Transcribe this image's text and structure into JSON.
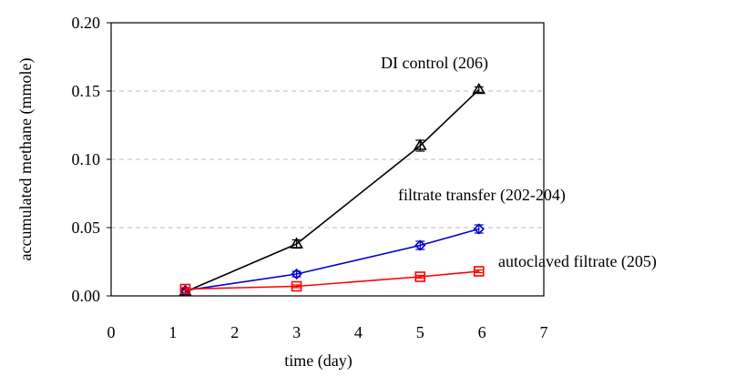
{
  "chart_data": {
    "type": "line",
    "xlabel": "time (day)",
    "ylabel": "accumulated methane (mmole)",
    "xlim": [
      0,
      7
    ],
    "ylim": [
      0,
      0.2
    ],
    "x_ticks": [
      "0",
      "1",
      "2",
      "3",
      "4",
      "5",
      "6",
      "7"
    ],
    "y_ticks": [
      "0.00",
      "0.05",
      "0.10",
      "0.15",
      "0.20"
    ],
    "grid": "horizontal dashed",
    "series": [
      {
        "name": "DI control (206)",
        "color": "#000000",
        "marker": "triangle",
        "x": [
          1.2,
          3,
          5,
          5.95
        ],
        "y": [
          0.003,
          0.038,
          0.11,
          0.151
        ],
        "error": [
          0.002,
          0.003,
          0.004,
          0.002
        ]
      },
      {
        "name": "filtrate transfer (202-204)",
        "color": "#0000cc",
        "marker": "diamond",
        "x": [
          1.2,
          3,
          5,
          5.95
        ],
        "y": [
          0.004,
          0.016,
          0.037,
          0.049
        ],
        "error": [
          0.002,
          0.002,
          0.003,
          0.003
        ]
      },
      {
        "name": "autoclaved filtrate (205)",
        "color": "#ff0000",
        "marker": "square",
        "x": [
          1.2,
          3,
          5,
          5.95
        ],
        "y": [
          0.005,
          0.007,
          0.014,
          0.018
        ],
        "error": [
          0.001,
          0.001,
          0.001,
          0.001
        ]
      }
    ]
  }
}
